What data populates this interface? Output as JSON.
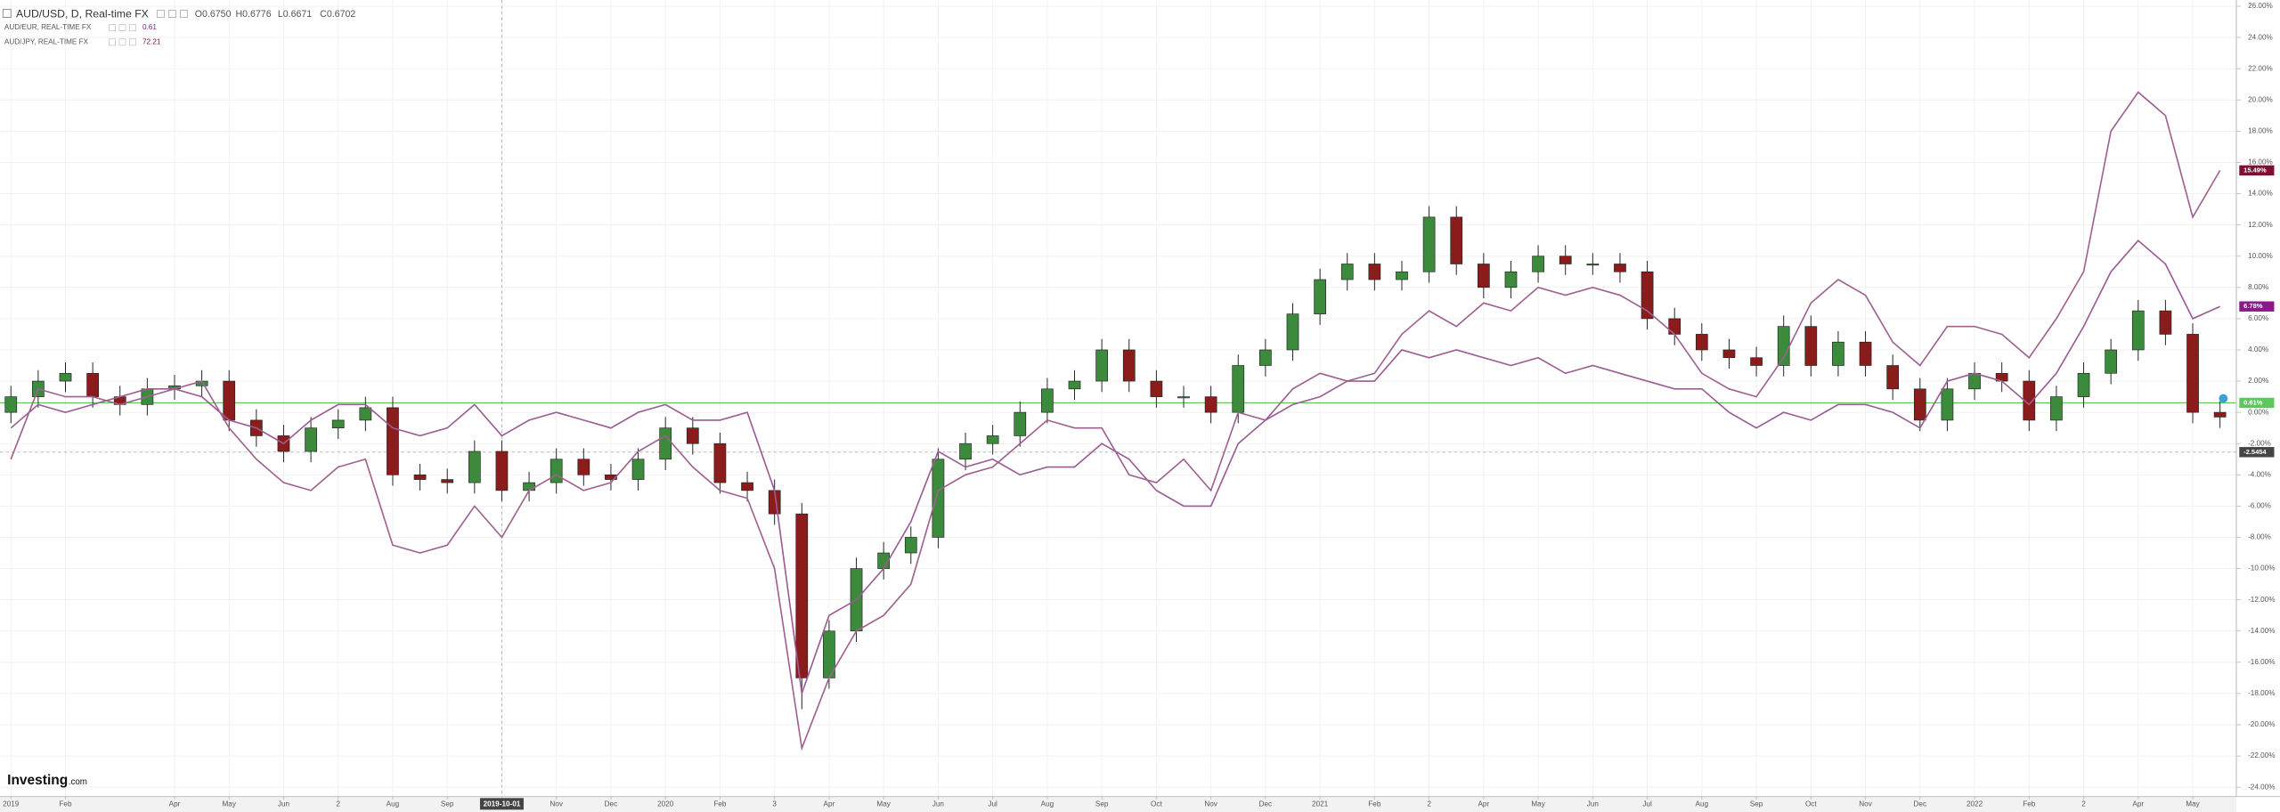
{
  "header": {
    "title": "AUD/USD, D, Real-time FX",
    "ohlc": [
      "O0.6750",
      "H0.6776",
      "L0.6671",
      "C0.6702"
    ]
  },
  "logo": {
    "brand": "Investing",
    "suffix": ".com"
  },
  "chart_data": {
    "type": "candlestick",
    "x": [
      0,
      0.5,
      1,
      1.5,
      2,
      2.5,
      3,
      3.5,
      4,
      4.5,
      5,
      5.5,
      6,
      6.5,
      7,
      7.5,
      8,
      8.5,
      9,
      9.5,
      10,
      10.5,
      11,
      11.5,
      12,
      12.5,
      13,
      13.5,
      14,
      14.5,
      15,
      15.5,
      16,
      16.5,
      17,
      17.5,
      18,
      18.5,
      19,
      19.5,
      20,
      20.5,
      21,
      21.5,
      22,
      22.5,
      23,
      23.5,
      24,
      24.5,
      25,
      25.5,
      26,
      26.5,
      27,
      27.5,
      28,
      28.5,
      29,
      29.5,
      30,
      30.5,
      31,
      31.5,
      32,
      32.5,
      33,
      33.5,
      34,
      34.5,
      35,
      35.5,
      36,
      36.5,
      37,
      37.5,
      38,
      38.5,
      39,
      39.5,
      40,
      40.5
    ],
    "xlim": [
      -0.2,
      40.8
    ],
    "xticks": [
      {
        "value": 0,
        "label": "2019"
      },
      {
        "value": 1,
        "label": "Feb"
      },
      {
        "value": 3,
        "label": "Apr"
      },
      {
        "value": 4,
        "label": "May"
      },
      {
        "value": 5,
        "label": "Jun"
      },
      {
        "value": 6,
        "label": "2"
      },
      {
        "value": 7,
        "label": "Aug"
      },
      {
        "value": 8,
        "label": "Sep"
      },
      {
        "value": 9,
        "label": "2019-10-01"
      },
      {
        "value": 10,
        "label": "Nov"
      },
      {
        "value": 11,
        "label": "Dec"
      },
      {
        "value": 12,
        "label": "2020"
      },
      {
        "value": 13,
        "label": "Feb"
      },
      {
        "value": 14,
        "label": "3"
      },
      {
        "value": 15,
        "label": "Apr"
      },
      {
        "value": 16,
        "label": "May"
      },
      {
        "value": 17,
        "label": "Jun"
      },
      {
        "value": 18,
        "label": "Jul"
      },
      {
        "value": 19,
        "label": "Aug"
      },
      {
        "value": 20,
        "label": "Sep"
      },
      {
        "value": 21,
        "label": "Oct"
      },
      {
        "value": 22,
        "label": "Nov"
      },
      {
        "value": 23,
        "label": "Dec"
      },
      {
        "value": 24,
        "label": "2021"
      },
      {
        "value": 25,
        "label": "Feb"
      },
      {
        "value": 26,
        "label": "2"
      },
      {
        "value": 27,
        "label": "Apr"
      },
      {
        "value": 28,
        "label": "May"
      },
      {
        "value": 29,
        "label": "Jun"
      },
      {
        "value": 30,
        "label": "Jul"
      },
      {
        "value": 31,
        "label": "Aug"
      },
      {
        "value": 32,
        "label": "Sep"
      },
      {
        "value": 33,
        "label": "Oct"
      },
      {
        "value": 34,
        "label": "Nov"
      },
      {
        "value": 35,
        "label": "Dec"
      },
      {
        "value": 36,
        "label": "2022"
      },
      {
        "value": 37,
        "label": "Feb"
      },
      {
        "value": 38,
        "label": "2"
      },
      {
        "value": 39,
        "label": "Apr"
      },
      {
        "value": 40,
        "label": "May"
      }
    ],
    "ylim": [
      -24.6,
      26.4
    ],
    "yticks": [
      {
        "value": 26,
        "label": "26.00%"
      },
      {
        "value": 24,
        "label": "24.00%"
      },
      {
        "value": 22,
        "label": "22.00%"
      },
      {
        "value": 20,
        "label": "20.00%"
      },
      {
        "value": 18,
        "label": "18.00%"
      },
      {
        "value": 16,
        "label": "16.00%"
      },
      {
        "value": 14,
        "label": "14.00%"
      },
      {
        "value": 12,
        "label": "12.00%"
      },
      {
        "value": 10,
        "label": "10.00%"
      },
      {
        "value": 8,
        "label": "8.00%"
      },
      {
        "value": 6,
        "label": "6.00%"
      },
      {
        "value": 4,
        "label": "4.00%"
      },
      {
        "value": 2,
        "label": "2.00%"
      },
      {
        "value": 0,
        "label": "0.00%"
      },
      {
        "value": -2,
        "label": "-2.00%"
      },
      {
        "value": -4,
        "label": "-4.00%"
      },
      {
        "value": -6,
        "label": "-6.00%"
      },
      {
        "value": -8,
        "label": "-8.00%"
      },
      {
        "value": -10,
        "label": "-10.00%"
      },
      {
        "value": -12,
        "label": "-12.00%"
      },
      {
        "value": -14,
        "label": "-14.00%"
      },
      {
        "value": -16,
        "label": "-16.00%"
      },
      {
        "value": -18,
        "label": "-18.00%"
      },
      {
        "value": -20,
        "label": "-20.00%"
      },
      {
        "value": -22,
        "label": "-22.00%"
      },
      {
        "value": -24,
        "label": "-24.00%"
      }
    ],
    "grid": true,
    "reference_line": {
      "value": 0.61,
      "label": "0.61%",
      "color": "#5cc85c"
    },
    "crosshair": {
      "x": 9,
      "y": -2.5454
    },
    "series": [
      {
        "name": "AUD/USD, D, Real-time FX",
        "type": "candlestick",
        "up_color": "#3c8a3c",
        "down_color": "#8b1c1c",
        "open": [
          0.0,
          1.0,
          2.0,
          2.5,
          1.0,
          0.5,
          1.5,
          1.7,
          2.0,
          -0.5,
          -1.5,
          -2.5,
          -1.0,
          -0.5,
          0.3,
          -4.0,
          -4.3,
          -4.5,
          -2.5,
          -5.0,
          -4.5,
          -3.0,
          -4.0,
          -4.3,
          -3.0,
          -1.0,
          -2.0,
          -4.5,
          -5.0,
          -6.5,
          -17.0,
          -14.0,
          -10.0,
          -9.0,
          -8.0,
          -3.0,
          -2.0,
          -1.5,
          0.0,
          1.5,
          2.0,
          4.0,
          2.0,
          1.0,
          1.0,
          0.0,
          3.0,
          4.0,
          6.3,
          8.5,
          9.5,
          8.5,
          9.0,
          12.5,
          9.5,
          8.0,
          9.0,
          10.0,
          9.5,
          9.5,
          9.0,
          6.0,
          5.0,
          4.0,
          3.5,
          3.0,
          5.5,
          3.0,
          4.5,
          3.0,
          1.5,
          -0.5,
          1.5,
          2.5,
          2.0,
          -0.5,
          1.0,
          2.5,
          4.0,
          6.5,
          5.0,
          0.0
        ],
        "high": [
          1.7,
          2.7,
          3.2,
          3.2,
          1.7,
          2.2,
          2.4,
          2.7,
          2.7,
          0.2,
          -0.8,
          -0.3,
          0.2,
          1.0,
          1.0,
          -3.3,
          -3.6,
          -1.8,
          -1.8,
          -3.8,
          -2.3,
          -2.3,
          -3.3,
          -2.3,
          -0.3,
          -0.3,
          -1.3,
          -3.8,
          -4.3,
          -5.8,
          -13.3,
          -9.3,
          -8.3,
          -7.3,
          -2.3,
          -1.3,
          -0.8,
          0.7,
          2.2,
          2.7,
          4.7,
          4.7,
          2.7,
          1.7,
          1.7,
          3.7,
          4.7,
          7.0,
          9.2,
          10.2,
          10.2,
          9.7,
          13.2,
          13.2,
          10.2,
          9.7,
          10.7,
          10.7,
          10.2,
          10.2,
          9.7,
          6.7,
          5.7,
          4.7,
          4.2,
          6.2,
          6.2,
          5.2,
          5.2,
          3.7,
          2.2,
          2.2,
          3.2,
          3.2,
          2.7,
          1.7,
          3.2,
          4.7,
          7.2,
          7.2,
          5.7,
          0.7
        ],
        "low": [
          -0.7,
          0.3,
          1.3,
          0.3,
          -0.2,
          -0.2,
          0.8,
          1.0,
          -1.2,
          -2.2,
          -3.2,
          -3.2,
          -1.7,
          -1.2,
          -4.7,
          -5.0,
          -5.2,
          -5.2,
          -5.7,
          -5.7,
          -5.2,
          -4.7,
          -5.0,
          -5.0,
          -3.7,
          -2.7,
          -5.2,
          -5.7,
          -7.2,
          -19.0,
          -17.7,
          -14.7,
          -10.7,
          -9.7,
          -8.7,
          -3.7,
          -2.7,
          -2.2,
          -0.7,
          0.8,
          1.3,
          1.3,
          0.3,
          0.3,
          -0.7,
          -0.7,
          2.3,
          3.3,
          5.6,
          7.8,
          7.8,
          7.8,
          8.3,
          8.8,
          7.3,
          7.3,
          8.3,
          8.8,
          8.8,
          8.3,
          5.3,
          4.3,
          3.3,
          2.8,
          2.3,
          2.3,
          2.3,
          2.3,
          2.3,
          0.8,
          -1.2,
          -1.2,
          0.8,
          1.3,
          -1.2,
          -1.2,
          0.3,
          1.8,
          3.3,
          4.3,
          -0.7,
          -1.0
        ],
        "close": [
          1.0,
          2.0,
          2.5,
          1.0,
          0.5,
          1.5,
          1.7,
          2.0,
          -0.5,
          -1.5,
          -2.5,
          -1.0,
          -0.5,
          0.3,
          -4.0,
          -4.3,
          -4.5,
          -2.5,
          -5.0,
          -4.5,
          -3.0,
          -4.0,
          -4.3,
          -3.0,
          -1.0,
          -2.0,
          -4.5,
          -5.0,
          -6.5,
          -17.0,
          -14.0,
          -10.0,
          -9.0,
          -8.0,
          -3.0,
          -2.0,
          -1.5,
          0.0,
          1.5,
          2.0,
          4.0,
          2.0,
          1.0,
          1.0,
          0.0,
          3.0,
          4.0,
          6.3,
          8.5,
          9.5,
          8.5,
          9.0,
          12.5,
          9.5,
          8.0,
          9.0,
          10.0,
          9.5,
          9.5,
          9.0,
          6.0,
          5.0,
          4.0,
          3.5,
          3.0,
          5.5,
          3.0,
          4.5,
          3.0,
          1.5,
          -0.5,
          1.5,
          2.5,
          2.0,
          -0.5,
          1.0,
          2.5,
          4.0,
          6.5,
          5.0,
          0.0,
          -0.3
        ]
      },
      {
        "name": "AUD/EUR, REAL-TIME FX",
        "type": "line",
        "color": "#9b5b93",
        "quote": 0.61,
        "tag_color": "#8a1a8a",
        "last_label": "6.78%",
        "values": [
          -1.0,
          0.5,
          0.0,
          0.5,
          1.0,
          1.5,
          1.5,
          1.0,
          -0.5,
          -1.0,
          -2.0,
          -0.5,
          0.5,
          0.5,
          -1.0,
          -1.5,
          -1.0,
          0.5,
          -1.5,
          -0.5,
          0.0,
          -0.5,
          -1.0,
          0.0,
          0.5,
          -0.5,
          -0.5,
          0.0,
          -5.0,
          -18.0,
          -13.0,
          -12.0,
          -10.0,
          -7.0,
          -2.5,
          -3.5,
          -3.0,
          -4.0,
          -3.5,
          -3.5,
          -2.0,
          -3.0,
          -5.0,
          -6.0,
          -6.0,
          -2.0,
          -0.5,
          0.5,
          1.0,
          2.0,
          2.0,
          4.0,
          3.5,
          4.0,
          3.5,
          3.0,
          3.5,
          2.5,
          3.0,
          2.5,
          2.0,
          1.5,
          1.5,
          0.0,
          -1.0,
          0.0,
          -0.5,
          0.5,
          0.5,
          0.0,
          -1.0,
          2.0,
          2.5,
          2.0,
          0.5,
          2.5,
          5.5,
          9.0,
          11.0,
          9.5,
          6.0,
          6.78
        ]
      },
      {
        "name": "AUD/JPY, REAL-TIME FX",
        "type": "line",
        "color": "#a0608f",
        "quote": 72.21,
        "tag_color": "#7b1034",
        "last_label": "15.49%",
        "values": [
          -3.0,
          1.5,
          1.0,
          1.0,
          0.5,
          1.0,
          1.5,
          2.0,
          -1.0,
          -3.0,
          -4.5,
          -5.0,
          -3.5,
          -3.0,
          -8.5,
          -9.0,
          -8.5,
          -6.0,
          -8.0,
          -5.0,
          -4.0,
          -5.0,
          -4.5,
          -2.5,
          -1.5,
          -3.5,
          -5.0,
          -5.5,
          -10.0,
          -21.5,
          -17.0,
          -14.0,
          -13.0,
          -11.0,
          -5.0,
          -4.0,
          -3.5,
          -2.0,
          -0.5,
          -1.0,
          -1.0,
          -4.0,
          -4.5,
          -3.0,
          -5.0,
          0.0,
          -0.5,
          1.5,
          2.5,
          2.0,
          2.5,
          5.0,
          6.5,
          5.5,
          7.0,
          6.5,
          8.0,
          7.5,
          8.0,
          7.5,
          6.5,
          5.0,
          2.5,
          1.5,
          1.0,
          3.5,
          7.0,
          8.5,
          7.5,
          4.5,
          3.0,
          5.5,
          5.5,
          5.0,
          3.5,
          6.0,
          9.0,
          18.0,
          20.5,
          19.0,
          12.5,
          15.49
        ]
      }
    ]
  }
}
